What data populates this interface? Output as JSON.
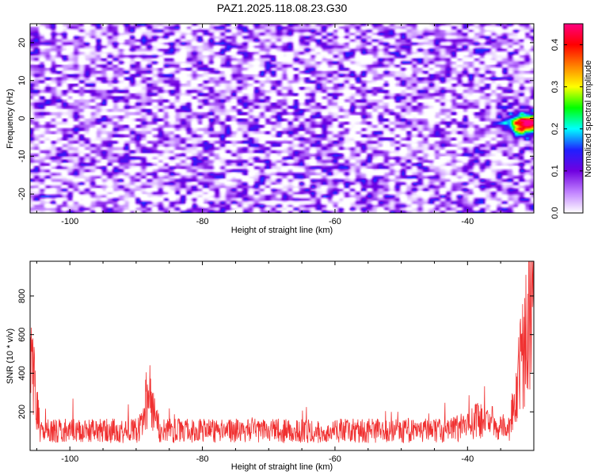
{
  "title": "PAZ1.2025.118.08.23.G30",
  "chart_data": [
    {
      "type": "heatmap",
      "xlabel": "Height of straight line (km)",
      "ylabel": "Frequency (Hz)",
      "xlim": [
        -106,
        -30
      ],
      "ylim": [
        -25,
        25
      ],
      "xticks": [
        -100,
        -80,
        -60,
        -40
      ],
      "yticks": [
        -20,
        -10,
        0,
        10,
        20
      ],
      "colorbar": {
        "label": "Normalized spectral amplitude",
        "range": [
          0.0,
          0.45
        ],
        "ticks": [
          0.0,
          0.1,
          0.2,
          0.3,
          0.4
        ],
        "colors": [
          "#ffffff",
          "#c080ff",
          "#7000e0",
          "#2020ff",
          "#00ffff",
          "#00ff00",
          "#ffff00",
          "#ff8000",
          "#ff0000",
          "#ff0080"
        ]
      },
      "hotspot": {
        "x": -31,
        "y": -1.5,
        "value": 0.45
      }
    },
    {
      "type": "line",
      "xlabel": "Height of straight line (km)",
      "ylabel": "SNR (10 * v/v)",
      "xlim": [
        -106,
        -30
      ],
      "ylim": [
        0,
        980
      ],
      "xticks": [
        -100,
        -80,
        -60,
        -40
      ],
      "yticks": [
        200,
        400,
        600,
        800
      ],
      "color": "#f03030",
      "baseline_mean": 110,
      "features": [
        {
          "x": -106,
          "peak": 560
        },
        {
          "x": -88,
          "peak": 470
        },
        {
          "x": -34,
          "peak": 400
        },
        {
          "x": -30,
          "peak": 980
        }
      ]
    }
  ]
}
